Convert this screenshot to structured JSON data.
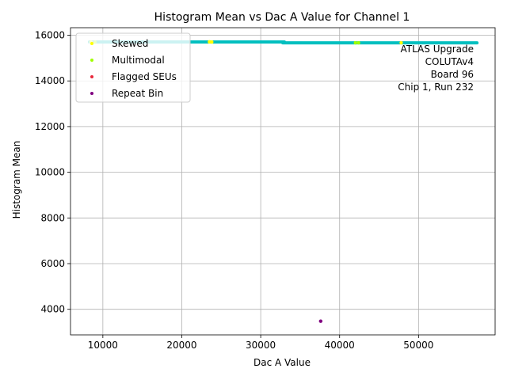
{
  "chart_data": {
    "type": "scatter",
    "title": "Histogram Mean vs Dac A Value for Channel 1",
    "xlabel": "Dac A Value",
    "ylabel": "Histogram Mean",
    "xlim": [
      5900,
      59700
    ],
    "ylim": [
      2880,
      16330
    ],
    "xticks": [
      10000,
      20000,
      30000,
      40000,
      50000
    ],
    "yticks": [
      4000,
      6000,
      8000,
      10000,
      12000,
      14000,
      16000
    ],
    "grid": true,
    "legend_position": "top-left",
    "main_series": {
      "color": "#00bfbf",
      "segments": [
        {
          "x0": 8300,
          "x1": 33000,
          "y": 15705
        },
        {
          "x0": 32800,
          "x1": 57400,
          "y": 15665
        }
      ]
    },
    "series": [
      {
        "name": "Skewed",
        "color": "#ffff00",
        "points": [
          [
            8500,
            15700
          ],
          [
            23500,
            15710
          ],
          [
            23800,
            15705
          ],
          [
            47800,
            15670
          ]
        ]
      },
      {
        "name": "Multimodal",
        "color": "#a0ff00",
        "points": [
          [
            9000,
            15700
          ],
          [
            42000,
            15670
          ],
          [
            42400,
            15668
          ]
        ]
      },
      {
        "name": "Flagged SEUs",
        "color": "#e8283c",
        "points": []
      },
      {
        "name": "Repeat Bin",
        "color": "#800080",
        "points": [
          [
            37600,
            3480
          ]
        ]
      }
    ],
    "annotation": [
      "ATLAS Upgrade",
      "COLUTAv4",
      "Board 96",
      "Chip 1, Run 232"
    ]
  }
}
